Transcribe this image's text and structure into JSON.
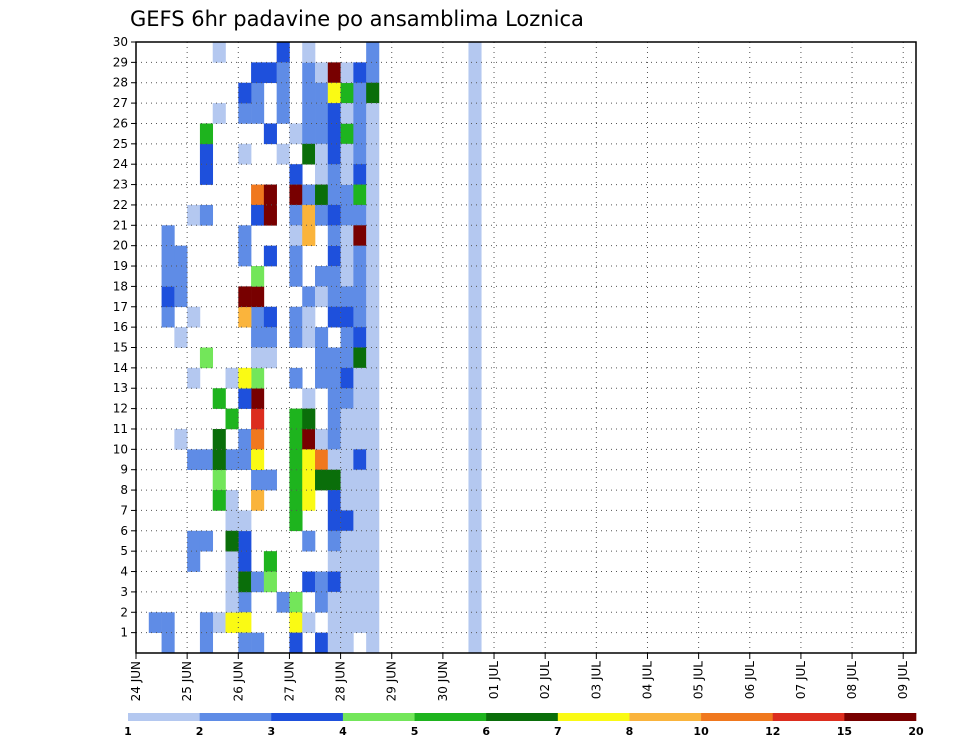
{
  "chart_data": {
    "type": "heatmap",
    "title": "GEFS 6hr padavine po ansamblima Loznica",
    "xlabel": "",
    "ylabel": "",
    "x_tick_labels": [
      "24 JUN",
      "25 JUN",
      "26 JUN",
      "27 JUN",
      "28 JUN",
      "29 JUN",
      "30 JUN",
      "01 JUL",
      "02 JUL",
      "03 JUL",
      "04 JUL",
      "05 JUL",
      "06 JUL",
      "07 JUL",
      "08 JUL",
      "09 JUL"
    ],
    "y_tick_labels": [
      "1",
      "2",
      "3",
      "4",
      "5",
      "6",
      "7",
      "8",
      "9",
      "10",
      "11",
      "12",
      "13",
      "14",
      "15",
      "16",
      "17",
      "18",
      "19",
      "20",
      "21",
      "22",
      "23",
      "24",
      "25",
      "26",
      "27",
      "28",
      "29",
      "30"
    ],
    "time_steps": 61,
    "members": 30,
    "grid": true,
    "legend_placement": "bottom",
    "legend": {
      "bounds": [
        "1",
        "2",
        "3",
        "4",
        "5",
        "6",
        "7",
        "8",
        "10",
        "12",
        "15",
        "20"
      ],
      "colors": [
        "#b4c8f0",
        "#5f8ce6",
        "#1e50dc",
        "#73e65a",
        "#1eb41e",
        "#0a6e0a",
        "#fafa14",
        "#fab43c",
        "#f0781e",
        "#dc2d1e",
        "#780000"
      ]
    },
    "cells": [
      [
        1,
        1,
        1
      ],
      [
        2,
        1,
        1
      ],
      [
        2,
        0,
        1
      ],
      [
        5,
        0,
        1
      ],
      [
        6,
        1,
        0
      ],
      [
        5,
        1,
        1
      ],
      [
        4,
        4,
        1
      ],
      [
        4,
        5,
        1
      ],
      [
        5,
        5,
        1
      ],
      [
        4,
        9,
        1
      ],
      [
        5,
        9,
        1
      ],
      [
        7,
        7,
        0
      ],
      [
        7,
        6,
        0
      ],
      [
        7,
        4,
        0
      ],
      [
        7,
        3,
        0
      ],
      [
        8,
        2,
        1
      ],
      [
        8,
        4,
        2
      ],
      [
        8,
        5,
        2
      ],
      [
        8,
        3,
        5
      ],
      [
        8,
        2,
        5
      ],
      [
        7,
        1,
        6
      ],
      [
        8,
        1,
        6
      ],
      [
        7,
        9,
        1
      ],
      [
        8,
        9,
        1
      ],
      [
        8,
        10,
        1
      ],
      [
        3,
        10,
        0
      ],
      [
        3,
        15,
        0
      ],
      [
        2,
        16,
        1
      ],
      [
        2,
        17,
        2
      ],
      [
        2,
        18,
        1
      ],
      [
        3,
        17,
        1
      ],
      [
        3,
        18,
        1
      ],
      [
        4,
        21,
        0
      ],
      [
        5,
        21,
        1
      ],
      [
        5,
        23,
        2
      ],
      [
        5,
        24,
        2
      ],
      [
        5,
        25,
        4
      ],
      [
        6,
        26,
        0
      ],
      [
        6,
        29,
        0
      ],
      [
        7,
        13,
        0
      ],
      [
        7,
        11,
        4
      ],
      [
        6,
        12,
        4
      ],
      [
        6,
        10,
        5
      ],
      [
        5,
        14,
        3
      ],
      [
        4,
        16,
        0
      ],
      [
        4,
        13,
        0
      ],
      [
        3,
        19,
        1
      ],
      [
        2,
        20,
        1
      ],
      [
        2,
        19,
        1
      ],
      [
        6,
        8,
        3
      ],
      [
        6,
        9,
        5
      ],
      [
        6,
        7,
        4
      ],
      [
        7,
        5,
        5
      ],
      [
        7,
        4,
        5
      ],
      [
        7,
        3,
        0
      ],
      [
        7,
        2,
        0
      ],
      [
        7,
        1,
        1
      ],
      [
        6,
        1,
        1
      ],
      [
        8,
        2,
        4
      ],
      [
        8,
        3,
        3
      ],
      [
        8,
        4,
        1
      ],
      [
        9,
        3,
        1
      ],
      [
        9,
        0,
        1
      ],
      [
        9,
        27,
        1
      ],
      [
        9,
        28,
        2
      ],
      [
        10,
        28,
        2
      ],
      [
        9,
        26,
        1
      ],
      [
        9,
        22,
        8
      ],
      [
        9,
        21,
        2
      ],
      [
        10,
        19,
        2
      ],
      [
        9,
        16,
        1
      ],
      [
        10,
        16,
        2
      ],
      [
        9,
        15,
        1
      ],
      [
        10,
        15,
        1
      ],
      [
        9,
        10,
        8
      ],
      [
        9,
        11,
        9
      ],
      [
        9,
        12,
        10
      ],
      [
        9,
        13,
        3
      ],
      [
        9,
        14,
        0
      ],
      [
        10,
        14,
        0
      ],
      [
        9,
        8,
        1
      ],
      [
        10,
        8,
        1
      ],
      [
        9,
        7,
        7
      ],
      [
        9,
        9,
        6
      ],
      [
        9,
        10,
        6
      ],
      [
        8,
        5,
        1
      ],
      [
        8,
        4,
        0
      ],
      [
        8,
        3,
        1
      ],
      [
        8,
        6,
        0
      ],
      [
        8,
        2,
        9
      ],
      [
        8,
        1,
        6
      ],
      [
        8,
        0,
        1
      ],
      [
        8,
        12,
        2
      ],
      [
        8,
        13,
        6
      ],
      [
        8,
        16,
        7
      ],
      [
        8,
        17,
        10
      ],
      [
        9,
        17,
        10
      ],
      [
        9,
        18,
        3
      ],
      [
        8,
        19,
        1
      ],
      [
        8,
        20,
        1
      ],
      [
        8,
        24,
        0
      ],
      [
        8,
        26,
        1
      ],
      [
        8,
        27,
        2
      ],
      [
        10,
        4,
        4
      ],
      [
        10,
        3,
        3
      ],
      [
        10,
        21,
        10
      ],
      [
        10,
        22,
        10
      ],
      [
        10,
        25,
        2
      ],
      [
        11,
        2,
        1
      ],
      [
        11,
        24,
        0
      ],
      [
        11,
        29,
        2
      ],
      [
        11,
        27,
        1
      ],
      [
        11,
        28,
        1
      ],
      [
        11,
        26,
        1
      ],
      [
        12,
        25,
        0
      ],
      [
        12,
        23,
        2
      ],
      [
        12,
        22,
        10
      ],
      [
        12,
        21,
        1
      ],
      [
        12,
        20,
        0
      ],
      [
        12,
        16,
        1
      ],
      [
        12,
        15,
        1
      ],
      [
        12,
        13,
        1
      ],
      [
        12,
        11,
        4
      ],
      [
        12,
        10,
        4
      ],
      [
        12,
        9,
        4
      ],
      [
        12,
        8,
        4
      ],
      [
        12,
        7,
        4
      ],
      [
        12,
        6,
        4
      ],
      [
        12,
        2,
        3
      ],
      [
        12,
        1,
        6
      ],
      [
        12,
        0,
        2
      ],
      [
        12,
        19,
        1
      ],
      [
        12,
        18,
        1
      ],
      [
        13,
        27,
        1
      ],
      [
        13,
        26,
        1
      ],
      [
        13,
        25,
        1
      ],
      [
        13,
        24,
        5
      ],
      [
        13,
        22,
        1
      ],
      [
        13,
        21,
        7
      ],
      [
        13,
        20,
        7
      ],
      [
        13,
        17,
        1
      ],
      [
        13,
        16,
        0
      ],
      [
        13,
        12,
        0
      ],
      [
        13,
        10,
        10
      ],
      [
        13,
        9,
        6
      ],
      [
        13,
        8,
        6
      ],
      [
        13,
        7,
        6
      ],
      [
        13,
        3,
        2
      ],
      [
        13,
        1,
        0
      ],
      [
        13,
        11,
        5
      ],
      [
        13,
        28,
        1
      ],
      [
        13,
        29,
        0
      ],
      [
        13,
        15,
        0
      ],
      [
        13,
        5,
        1
      ],
      [
        14,
        28,
        0
      ],
      [
        14,
        27,
        1
      ],
      [
        14,
        26,
        1
      ],
      [
        14,
        25,
        1
      ],
      [
        14,
        24,
        0
      ],
      [
        14,
        23,
        0
      ],
      [
        14,
        22,
        5
      ],
      [
        14,
        21,
        1
      ],
      [
        14,
        18,
        1
      ],
      [
        14,
        17,
        0
      ],
      [
        14,
        14,
        1
      ],
      [
        14,
        13,
        1
      ],
      [
        14,
        9,
        8
      ],
      [
        14,
        8,
        5
      ],
      [
        14,
        3,
        1
      ],
      [
        14,
        2,
        1
      ],
      [
        14,
        0,
        2
      ],
      [
        14,
        15,
        1
      ],
      [
        14,
        10,
        0
      ],
      [
        15,
        28,
        10
      ],
      [
        15,
        27,
        6
      ],
      [
        15,
        26,
        2
      ],
      [
        15,
        25,
        2
      ],
      [
        15,
        24,
        2
      ],
      [
        15,
        23,
        1
      ],
      [
        15,
        22,
        1
      ],
      [
        15,
        21,
        2
      ],
      [
        15,
        19,
        2
      ],
      [
        15,
        18,
        1
      ],
      [
        15,
        17,
        1
      ],
      [
        15,
        16,
        2
      ],
      [
        15,
        14,
        1
      ],
      [
        15,
        12,
        1
      ],
      [
        15,
        11,
        1
      ],
      [
        15,
        10,
        1
      ],
      [
        15,
        9,
        0
      ],
      [
        15,
        8,
        5
      ],
      [
        15,
        7,
        2
      ],
      [
        15,
        6,
        2
      ],
      [
        15,
        5,
        1
      ],
      [
        15,
        4,
        0
      ],
      [
        15,
        3,
        2
      ],
      [
        15,
        2,
        0
      ],
      [
        15,
        0,
        0
      ],
      [
        15,
        13,
        1
      ],
      [
        15,
        20,
        1
      ],
      [
        15,
        1,
        0
      ],
      [
        16,
        27,
        4
      ],
      [
        16,
        25,
        4
      ],
      [
        16,
        22,
        1
      ],
      [
        16,
        21,
        1
      ],
      [
        16,
        20,
        0
      ],
      [
        16,
        19,
        0
      ],
      [
        16,
        18,
        0
      ],
      [
        16,
        17,
        1
      ],
      [
        16,
        16,
        2
      ],
      [
        16,
        15,
        1
      ],
      [
        16,
        14,
        1
      ],
      [
        16,
        13,
        2
      ],
      [
        16,
        12,
        1
      ],
      [
        16,
        11,
        0
      ],
      [
        16,
        10,
        0
      ],
      [
        16,
        9,
        0
      ],
      [
        16,
        8,
        0
      ],
      [
        16,
        7,
        0
      ],
      [
        16,
        6,
        2
      ],
      [
        16,
        5,
        0
      ],
      [
        16,
        4,
        0
      ],
      [
        16,
        3,
        0
      ],
      [
        16,
        2,
        0
      ],
      [
        16,
        1,
        0
      ],
      [
        16,
        0,
        0
      ],
      [
        16,
        23,
        0
      ],
      [
        16,
        24,
        0
      ],
      [
        16,
        26,
        0
      ],
      [
        16,
        28,
        0
      ],
      [
        17,
        28,
        2
      ],
      [
        17,
        27,
        1
      ],
      [
        17,
        26,
        1
      ],
      [
        17,
        25,
        1
      ],
      [
        17,
        24,
        1
      ],
      [
        17,
        23,
        2
      ],
      [
        17,
        22,
        4
      ],
      [
        17,
        21,
        1
      ],
      [
        17,
        20,
        10
      ],
      [
        17,
        19,
        1
      ],
      [
        17,
        18,
        1
      ],
      [
        17,
        17,
        1
      ],
      [
        17,
        16,
        1
      ],
      [
        17,
        15,
        2
      ],
      [
        17,
        14,
        5
      ],
      [
        17,
        13,
        0
      ],
      [
        17,
        12,
        0
      ],
      [
        17,
        11,
        0
      ],
      [
        17,
        10,
        0
      ],
      [
        17,
        9,
        2
      ],
      [
        17,
        8,
        0
      ],
      [
        17,
        7,
        0
      ],
      [
        17,
        6,
        0
      ],
      [
        17,
        5,
        0
      ],
      [
        17,
        4,
        0
      ],
      [
        17,
        3,
        0
      ],
      [
        17,
        2,
        0
      ],
      [
        17,
        1,
        0
      ],
      [
        18,
        29,
        1
      ],
      [
        18,
        28,
        1
      ],
      [
        18,
        27,
        5
      ],
      [
        18,
        26,
        0
      ],
      [
        18,
        25,
        0
      ],
      [
        18,
        24,
        0
      ],
      [
        18,
        23,
        0
      ],
      [
        18,
        22,
        0
      ],
      [
        18,
        21,
        0
      ],
      [
        18,
        20,
        0
      ],
      [
        18,
        19,
        0
      ],
      [
        18,
        18,
        0
      ],
      [
        18,
        17,
        0
      ],
      [
        18,
        16,
        0
      ],
      [
        18,
        15,
        0
      ],
      [
        18,
        14,
        0
      ],
      [
        18,
        13,
        0
      ],
      [
        18,
        12,
        0
      ],
      [
        18,
        11,
        0
      ],
      [
        18,
        10,
        0
      ],
      [
        18,
        9,
        0
      ],
      [
        18,
        8,
        0
      ],
      [
        18,
        7,
        0
      ],
      [
        18,
        6,
        0
      ],
      [
        18,
        5,
        0
      ],
      [
        18,
        4,
        0
      ],
      [
        18,
        3,
        0
      ],
      [
        18,
        2,
        0
      ],
      [
        18,
        1,
        0
      ],
      [
        18,
        0,
        0
      ],
      [
        26,
        29,
        0
      ],
      [
        26,
        28,
        0
      ],
      [
        26,
        27,
        0
      ],
      [
        26,
        26,
        0
      ],
      [
        26,
        25,
        0
      ],
      [
        26,
        24,
        0
      ],
      [
        26,
        23,
        0
      ],
      [
        26,
        22,
        0
      ],
      [
        26,
        21,
        0
      ],
      [
        26,
        20,
        0
      ],
      [
        26,
        19,
        0
      ],
      [
        26,
        18,
        0
      ],
      [
        26,
        17,
        0
      ],
      [
        26,
        16,
        0
      ],
      [
        26,
        15,
        0
      ],
      [
        26,
        14,
        0
      ],
      [
        26,
        13,
        0
      ],
      [
        26,
        12,
        0
      ],
      [
        26,
        11,
        0
      ],
      [
        26,
        10,
        0
      ],
      [
        26,
        9,
        0
      ],
      [
        26,
        8,
        0
      ],
      [
        26,
        7,
        0
      ],
      [
        26,
        6,
        0
      ],
      [
        26,
        5,
        0
      ],
      [
        26,
        4,
        0
      ],
      [
        26,
        3,
        0
      ],
      [
        26,
        2,
        0
      ],
      [
        26,
        1,
        0
      ],
      [
        26,
        0,
        0
      ]
    ]
  }
}
